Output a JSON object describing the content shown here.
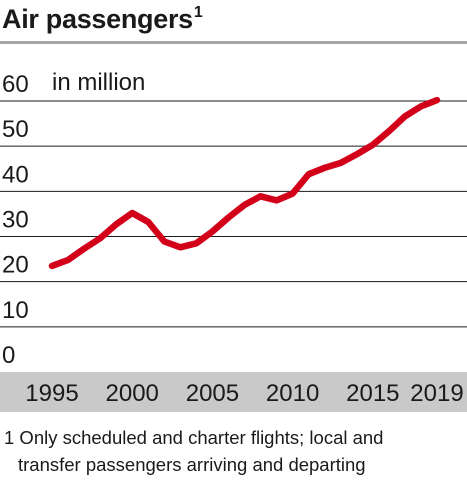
{
  "header": {
    "title": "Air passengers",
    "title_marker": "1"
  },
  "footnote": {
    "line1": "1 Only scheduled and charter flights; local and",
    "line2": "transfer passengers arriving and departing"
  },
  "colors": {
    "line": "#d3001a",
    "axis_band": "#c9c9c9",
    "grid": "#1a1a1a",
    "rule": "#a6a6a6"
  },
  "chart_data": {
    "type": "line",
    "title": "Air passengers",
    "unit_label": "in million",
    "ylim": [
      0,
      60
    ],
    "yticks": [
      0,
      10,
      20,
      30,
      40,
      50,
      60
    ],
    "xlim": [
      1995,
      2019
    ],
    "xticks": [
      1995,
      2000,
      2005,
      2010,
      2015,
      2019
    ],
    "grid": true,
    "series": [
      {
        "x": [
          1995,
          1996,
          1997,
          1998,
          1999,
          2000,
          2001,
          2002,
          2003,
          2004,
          2005,
          2006,
          2007,
          2008,
          2009,
          2010,
          2011,
          2012,
          2013,
          2014,
          2015,
          2016,
          2017,
          2018,
          2019
        ],
        "values": [
          23.5,
          24.8,
          27.3,
          29.6,
          32.7,
          35.2,
          33.2,
          28.9,
          27.6,
          28.5,
          31.1,
          34.2,
          37.0,
          38.9,
          38.0,
          39.5,
          43.8,
          45.2,
          46.3,
          48.2,
          50.3,
          53.3,
          56.6,
          58.8,
          60.2
        ]
      }
    ]
  }
}
